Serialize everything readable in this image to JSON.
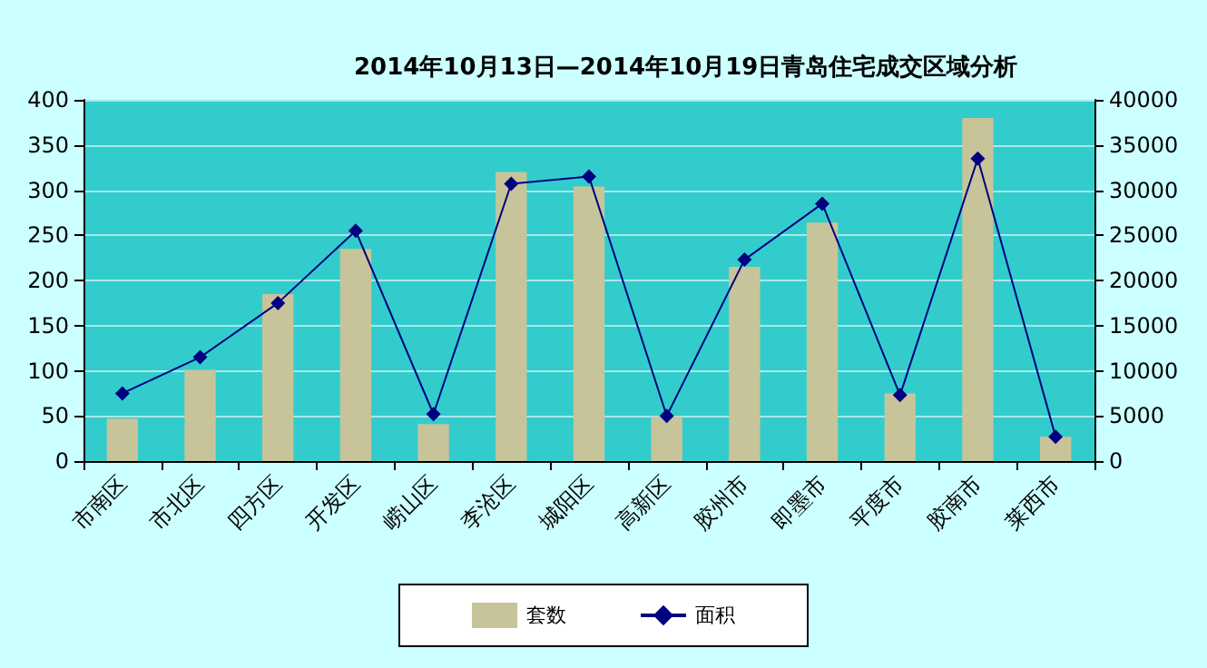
{
  "chart_data": {
    "type": "bar",
    "title": "2014年10月13日—2014年10月19日青岛住宅成交区域分析",
    "categories": [
      "市南区",
      "市北区",
      "四方区",
      "开发区",
      "崂山区",
      "李沧区",
      "城阳区",
      "高新区",
      "胶州市",
      "即墨市",
      "平度市",
      "胶南市",
      "莱西市"
    ],
    "series": [
      {
        "name": "套数",
        "color": "#c8c49a",
        "values": [
          47,
          101,
          185,
          235,
          41,
          320,
          304,
          49,
          215,
          264,
          75,
          380,
          27
        ]
      },
      {
        "name": "面积",
        "type": "line",
        "axis": "y2",
        "color": "#000080",
        "marker": "diamond",
        "values": [
          7500,
          11500,
          17500,
          25500,
          5200,
          30700,
          31500,
          5000,
          22300,
          28500,
          7300,
          33500,
          2700
        ]
      }
    ],
    "ylim": [
      0,
      400
    ],
    "yticks": [
      0,
      50,
      100,
      150,
      200,
      250,
      300,
      350,
      400
    ],
    "y2lim": [
      0,
      40000
    ],
    "y2ticks": [
      0,
      5000,
      10000,
      15000,
      20000,
      25000,
      30000,
      35000,
      40000
    ],
    "grid": "y",
    "legend": "bottom"
  }
}
